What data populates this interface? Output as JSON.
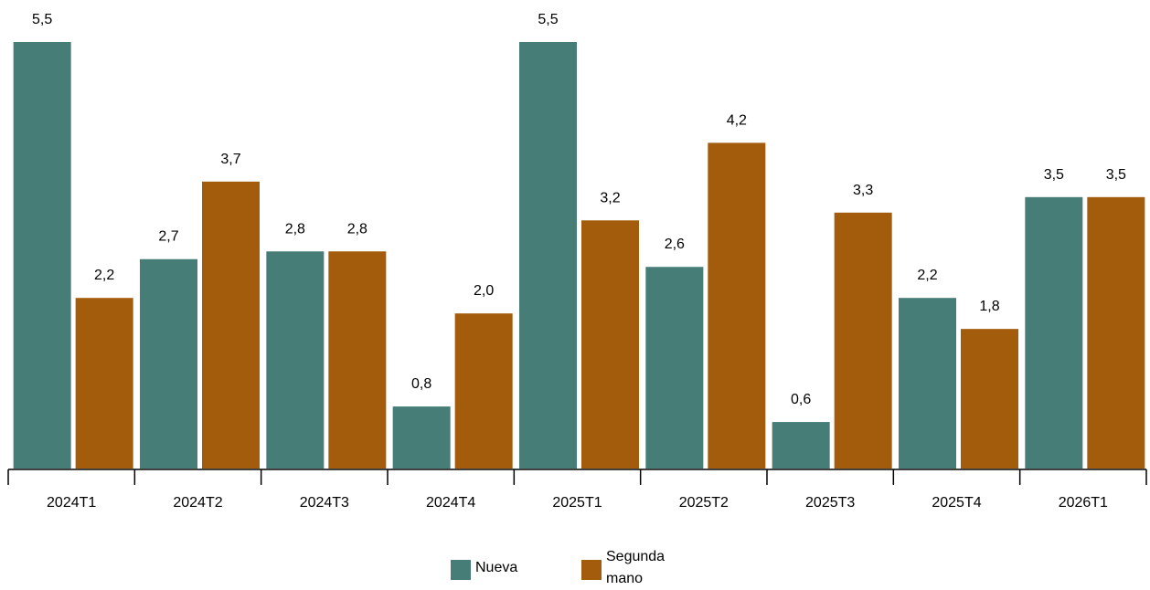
{
  "chart_data": {
    "type": "bar",
    "categories": [
      "2024T1",
      "2024T2",
      "2024T3",
      "2024T4",
      "2025T1",
      "2025T2",
      "2025T3",
      "2025T4",
      "2026T1"
    ],
    "series": [
      {
        "name": "Nueva",
        "color": "#467d76",
        "values": [
          5.5,
          2.7,
          2.8,
          0.8,
          5.5,
          2.6,
          0.6,
          2.2,
          3.5
        ],
        "labels": [
          "5,5",
          "2,7",
          "2,8",
          "0,8",
          "5,5",
          "2,6",
          "0,6",
          "2,2",
          "3,5"
        ]
      },
      {
        "name": "Segunda mano",
        "color": "#a35c0b",
        "values": [
          2.2,
          3.7,
          2.8,
          2.0,
          3.2,
          4.2,
          3.3,
          1.8,
          3.5
        ],
        "labels": [
          "2,2",
          "3,7",
          "2,8",
          "2,0",
          "3,2",
          "4,2",
          "3,3",
          "1,8",
          "3,5"
        ]
      }
    ],
    "ylim": [
      0,
      5.5
    ],
    "grid": false,
    "legend_position": "bottom"
  }
}
